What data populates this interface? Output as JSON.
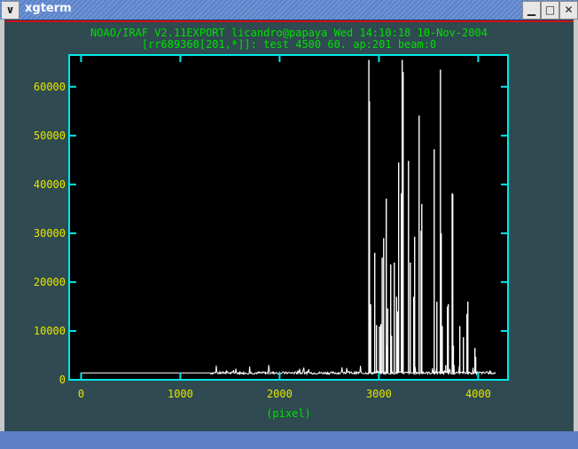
{
  "window": {
    "title": "xgterm",
    "menu_icon": "chevron-down-icon",
    "buttons": [
      "minimize-icon",
      "maximize-icon",
      "close-icon"
    ]
  },
  "header": {
    "line1": "NOAO/IRAF V2.11EXPORT licandro@papaya Wed 14:10:18 10-Nov-2004",
    "line2": "[rr689360[201,*]]: test 4500 60. ap:201 beam:0"
  },
  "colors": {
    "frame": "#00e8e8",
    "ticks_text": "#e6e600",
    "header_text": "#00e000",
    "trace": "#ffffff",
    "background": "#000000"
  },
  "chart_data": {
    "type": "line",
    "xlabel": "(pixel)",
    "ylabel": "",
    "xlim": [
      -120,
      4300
    ],
    "ylim": [
      0,
      66500
    ],
    "xticks": [
      "0",
      "1000",
      "2000",
      "3000",
      "4000"
    ],
    "yticks": [
      "0",
      "10000",
      "20000",
      "30000",
      "40000",
      "50000",
      "60000"
    ],
    "grid": false,
    "x_range": [
      0,
      4180
    ],
    "continuum": 1400,
    "noise_region": [
      1300,
      2900
    ],
    "lines": [
      [
        2899,
        65500
      ],
      [
        2905,
        57000
      ],
      [
        2917,
        15500
      ],
      [
        2958,
        26000
      ],
      [
        2976,
        11200
      ],
      [
        3006,
        10900
      ],
      [
        3020,
        11400
      ],
      [
        3033,
        25000
      ],
      [
        3048,
        29000
      ],
      [
        3074,
        37100
      ],
      [
        3080,
        7000
      ],
      [
        3089,
        14600
      ],
      [
        3119,
        23600
      ],
      [
        3128,
        9000
      ],
      [
        3155,
        24000
      ],
      [
        3178,
        17000
      ],
      [
        3190,
        14000
      ],
      [
        3199,
        44500
      ],
      [
        3226,
        38200
      ],
      [
        3235,
        65500
      ],
      [
        3244,
        63000
      ],
      [
        3298,
        44800
      ],
      [
        3316,
        24000
      ],
      [
        3351,
        17000
      ],
      [
        3360,
        29300
      ],
      [
        3405,
        54100
      ],
      [
        3425,
        30500
      ],
      [
        3432,
        36000
      ],
      [
        3557,
        47200
      ],
      [
        3584,
        16000
      ],
      [
        3620,
        63500
      ],
      [
        3628,
        30000
      ],
      [
        3638,
        11000
      ],
      [
        3673,
        3000
      ],
      [
        3691,
        15000
      ],
      [
        3699,
        15500
      ],
      [
        3738,
        38200
      ],
      [
        3744,
        38000
      ],
      [
        3750,
        7000
      ],
      [
        3815,
        11000
      ],
      [
        3851,
        8700
      ],
      [
        3887,
        13500
      ],
      [
        3896,
        16000
      ],
      [
        3967,
        6500
      ],
      [
        3975,
        4700
      ]
    ]
  }
}
